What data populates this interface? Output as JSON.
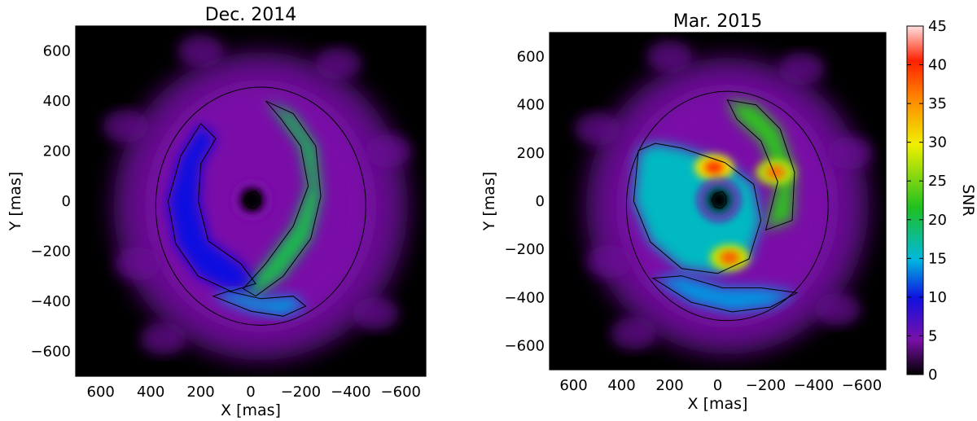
{
  "chart_data": [
    {
      "type": "heatmap",
      "title": "Dec. 2014",
      "xlabel": "X [mas]",
      "ylabel": "Y [mas]",
      "xlim": [
        700,
        -700
      ],
      "ylim": [
        -700,
        700
      ],
      "xticks": [
        600,
        400,
        200,
        0,
        -200,
        -400,
        -600
      ],
      "yticks": [
        600,
        400,
        200,
        0,
        -200,
        -400,
        -600
      ],
      "xtick_labels": [
        "600",
        "400",
        "200",
        "0",
        "−200",
        "−400",
        "−600"
      ],
      "ytick_labels": [
        "600",
        "400",
        "200",
        "0",
        "−200",
        "−400",
        "−600"
      ],
      "features": [
        {
          "name": "",
          "points": [
            [
              -20,
              40
            ],
            [
              10,
              30
            ],
            [
              25,
              5
            ],
            [
              10,
              -25
            ],
            [
              -15,
              -30
            ],
            [
              -35,
              -10
            ],
            [
              -35,
              20
            ]
          ],
          "value": 0
        },
        {
          "name": "",
          "points": [
            [
              -60,
              400
            ],
            [
              -170,
              350
            ],
            [
              -260,
              220
            ],
            [
              -280,
              20
            ],
            [
              -240,
              -150
            ],
            [
              -130,
              -300
            ],
            [
              -20,
              -380
            ],
            [
              30,
              -350
            ],
            [
              -60,
              -250
            ],
            [
              -170,
              -100
            ],
            [
              -230,
              60
            ],
            [
              -200,
              220
            ],
            [
              -120,
              330
            ]
          ],
          "value": 20
        },
        {
          "name": "",
          "points": [
            [
              200,
              310
            ],
            [
              280,
              180
            ],
            [
              330,
              0
            ],
            [
              300,
              -170
            ],
            [
              210,
              -300
            ],
            [
              80,
              -360
            ],
            [
              -20,
              -330
            ],
            [
              40,
              -250
            ],
            [
              170,
              -160
            ],
            [
              210,
              0
            ],
            [
              200,
              150
            ],
            [
              140,
              250
            ]
          ],
          "value": 10
        },
        {
          "name": "",
          "points": [
            [
              150,
              -380
            ],
            [
              0,
              -440
            ],
            [
              -130,
              -460
            ],
            [
              -220,
              -420
            ],
            [
              -170,
              -380
            ],
            [
              -40,
              -390
            ],
            [
              90,
              -360
            ]
          ],
          "value": 14
        }
      ],
      "grid": false
    },
    {
      "type": "heatmap",
      "title": "Mar. 2015",
      "xlabel": "X [mas]",
      "ylabel": "Y [mas]",
      "xlim": [
        700,
        -700
      ],
      "ylim": [
        -700,
        700
      ],
      "xticks": [
        600,
        400,
        200,
        0,
        -200,
        -400,
        -600
      ],
      "yticks": [
        600,
        400,
        200,
        0,
        -200,
        -400,
        -600
      ],
      "xtick_labels": [
        "600",
        "400",
        "200",
        "0",
        "−200",
        "−400",
        "−600"
      ],
      "ytick_labels": [
        "600",
        "400",
        "200",
        "0",
        "−200",
        "−400",
        "−600"
      ],
      "features": [
        {
          "name": "",
          "points": [
            [
              -20,
              40
            ],
            [
              10,
              30
            ],
            [
              25,
              5
            ],
            [
              10,
              -25
            ],
            [
              -15,
              -30
            ],
            [
              -35,
              -10
            ],
            [
              -35,
              20
            ]
          ],
          "value": 0
        },
        {
          "name": "",
          "points": [
            [
              -40,
              420
            ],
            [
              -160,
              400
            ],
            [
              -260,
              300
            ],
            [
              -320,
              120
            ],
            [
              -310,
              -80
            ],
            [
              -200,
              -120
            ],
            [
              -250,
              80
            ],
            [
              -180,
              250
            ],
            [
              -80,
              340
            ]
          ],
          "value": 22
        },
        {
          "name": "",
          "points": [
            [
              330,
              210
            ],
            [
              350,
              0
            ],
            [
              280,
              -170
            ],
            [
              150,
              -280
            ],
            [
              0,
              -300
            ],
            [
              -130,
              -240
            ],
            [
              -180,
              -80
            ],
            [
              -150,
              70
            ],
            [
              -30,
              160
            ],
            [
              150,
              220
            ],
            [
              260,
              240
            ]
          ],
          "value": 16
        },
        {
          "name": "",
          "points": [
            [
              270,
              -320
            ],
            [
              110,
              -420
            ],
            [
              -60,
              -460
            ],
            [
              -220,
              -440
            ],
            [
              -330,
              -380
            ],
            [
              -180,
              -360
            ],
            [
              -20,
              -360
            ],
            [
              150,
              -310
            ]
          ],
          "value": 14
        }
      ],
      "peaks": [
        {
          "x": 15,
          "y": 140,
          "value": 40
        },
        {
          "x": -240,
          "y": 120,
          "value": 37
        },
        {
          "x": -50,
          "y": -235,
          "value": 38
        }
      ],
      "grid": false
    }
  ],
  "colorbar": {
    "label": "SNR",
    "range": [
      0,
      45
    ],
    "ticks": [
      0,
      5,
      10,
      15,
      20,
      25,
      30,
      35,
      40,
      45
    ],
    "colors": [
      "#000000",
      "#7a10a8",
      "#1010e0",
      "#00b8e0",
      "#20c020",
      "#f0f000",
      "#ff2000",
      "#ffe0e0"
    ]
  }
}
